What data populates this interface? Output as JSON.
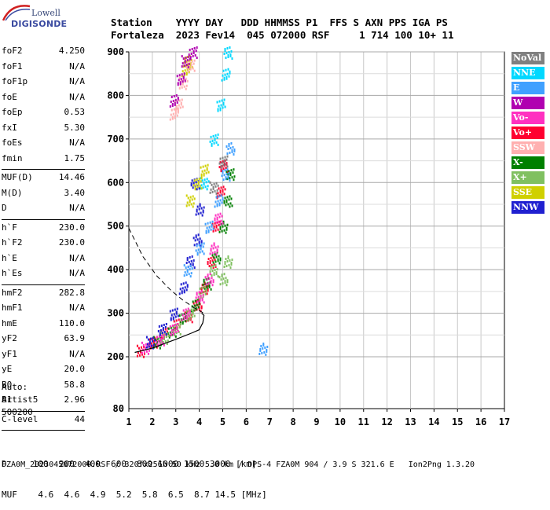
{
  "logo": {
    "line1": "Lowell",
    "line2": "DIGISONDE"
  },
  "header": {
    "row1": "Station    YYYY DAY   DDD HHMMSS P1  FFS S AXN PPS IGA PS",
    "row2": "Fortaleza  2023 Fev14  045 072000 RSF     1 714 100 10+ 11"
  },
  "params": {
    "group1": [
      {
        "k": "foF2",
        "v": "4.250"
      },
      {
        "k": "foF1",
        "v": "N/A"
      },
      {
        "k": "foF1p",
        "v": "N/A"
      },
      {
        "k": "foE",
        "v": "N/A"
      },
      {
        "k": "foEp",
        "v": "0.53"
      },
      {
        "k": "fxI",
        "v": "5.30"
      },
      {
        "k": "foEs",
        "v": "N/A"
      },
      {
        "k": "fmin",
        "v": "1.75"
      }
    ],
    "group2": [
      {
        "k": "MUF(D)",
        "v": "14.46"
      },
      {
        "k": "M(D)",
        "v": "3.40"
      },
      {
        "k": "D",
        "v": "N/A"
      }
    ],
    "group3": [
      {
        "k": "h`F",
        "v": "230.0"
      },
      {
        "k": "h`F2",
        "v": "230.0"
      },
      {
        "k": "h`E",
        "v": "N/A"
      },
      {
        "k": "h`Es",
        "v": "N/A"
      }
    ],
    "group4": [
      {
        "k": "hmF2",
        "v": "282.8"
      },
      {
        "k": "hmF1",
        "v": "N/A"
      },
      {
        "k": "hmE",
        "v": "110.0"
      },
      {
        "k": "yF2",
        "v": "63.9"
      },
      {
        "k": "yF1",
        "v": "N/A"
      },
      {
        "k": "yE",
        "v": "20.0"
      },
      {
        "k": "B0",
        "v": "58.8"
      },
      {
        "k": "B1",
        "v": "2.96"
      }
    ],
    "group5": [
      {
        "k": "C-level",
        "v": "44"
      }
    ]
  },
  "auto": {
    "line1": "Auto:",
    "line2": "Artist5",
    "line3": "500200"
  },
  "legend": [
    {
      "label": "NoVal",
      "color": "#808080"
    },
    {
      "label": "NNE",
      "color": "#00d8ff"
    },
    {
      "label": "E",
      "color": "#40a0ff"
    },
    {
      "label": "W",
      "color": "#b000b0"
    },
    {
      "label": "Vo-",
      "color": "#ff30c0"
    },
    {
      "label": "Vo+",
      "color": "#ff0030"
    },
    {
      "label": "SSW",
      "color": "#ffb0b0"
    },
    {
      "label": "X-",
      "color": "#008000"
    },
    {
      "label": "X+",
      "color": "#80c060"
    },
    {
      "label": "SSE",
      "color": "#d0d000"
    },
    {
      "label": "NNW",
      "color": "#2020d0"
    }
  ],
  "bottom": {
    "d_row": "D     100  200  400  600  800 1000 1500 3000 [km]",
    "muf_row": "MUF    4.6  4.6  4.9  5.2  5.8  6.5  8.7 14.5 [MHz]"
  },
  "footer": "FZA0M_2023045072000.RSF / 320fx256h 50 kHz 5.0 km / DPS-4 FZA0M 904 / 3.9 S 321.6 E   Ion2Png 1.3.20",
  "chart_data": {
    "type": "scatter",
    "xlim": [
      1,
      17
    ],
    "ylim": [
      80,
      900
    ],
    "x_ticks": [
      1,
      2,
      3,
      4,
      5,
      6,
      7,
      8,
      9,
      10,
      11,
      12,
      13,
      14,
      15,
      16,
      17
    ],
    "y_ticks": [
      200,
      300,
      400,
      500,
      600,
      700,
      800,
      900
    ],
    "y_tick_labels": [
      "200",
      "300",
      "400",
      "500",
      "600",
      "700",
      "800",
      "900"
    ],
    "y_bottom_label": "80",
    "grid": true,
    "legend_position": "right",
    "echo_traces": [
      {
        "direction": "Vo+",
        "points": [
          [
            1.5,
            215
          ],
          [
            2.0,
            235
          ],
          [
            2.5,
            255
          ],
          [
            3.0,
            275
          ],
          [
            3.5,
            295
          ],
          [
            3.9,
            320
          ],
          [
            4.2,
            360
          ],
          [
            4.5,
            420
          ],
          [
            4.7,
            500
          ],
          [
            4.9,
            580
          ],
          [
            5.0,
            640
          ]
        ]
      },
      {
        "direction": "X-",
        "points": [
          [
            2.2,
            235
          ],
          [
            2.8,
            260
          ],
          [
            3.3,
            290
          ],
          [
            3.8,
            320
          ],
          [
            4.3,
            370
          ],
          [
            4.7,
            430
          ],
          [
            5.0,
            500
          ],
          [
            5.2,
            560
          ],
          [
            5.3,
            620
          ]
        ]
      },
      {
        "direction": "X+",
        "points": [
          [
            2.5,
            245
          ],
          [
            3.0,
            265
          ],
          [
            3.6,
            300
          ],
          [
            4.1,
            350
          ],
          [
            4.6,
            400
          ],
          [
            5.0,
            380
          ],
          [
            5.2,
            420
          ]
        ]
      },
      {
        "direction": "Vo-",
        "points": [
          [
            1.7,
            222
          ],
          [
            2.3,
            240
          ],
          [
            2.9,
            265
          ],
          [
            3.4,
            300
          ],
          [
            4.0,
            340
          ],
          [
            4.4,
            380
          ],
          [
            4.6,
            450
          ],
          [
            4.8,
            520
          ]
        ]
      },
      {
        "direction": "NNW",
        "points": [
          [
            1.9,
            235
          ],
          [
            2.4,
            265
          ],
          [
            2.9,
            300
          ],
          [
            3.3,
            360
          ],
          [
            3.6,
            420
          ],
          [
            3.9,
            470
          ],
          [
            4.0,
            540
          ],
          [
            3.8,
            600
          ]
        ]
      },
      {
        "direction": "E",
        "points": [
          [
            3.5,
            400
          ],
          [
            4.0,
            450
          ],
          [
            4.4,
            500
          ],
          [
            4.8,
            560
          ],
          [
            5.1,
            620
          ],
          [
            5.3,
            680
          ],
          [
            6.7,
            220
          ]
        ]
      },
      {
        "direction": "NNE",
        "points": [
          [
            4.2,
            600
          ],
          [
            4.6,
            700
          ],
          [
            4.9,
            780
          ],
          [
            5.1,
            850
          ],
          [
            5.2,
            900
          ]
        ]
      },
      {
        "direction": "SSE",
        "points": [
          [
            3.6,
            560
          ],
          [
            3.9,
            600
          ],
          [
            4.2,
            630
          ],
          [
            3.4,
            860
          ],
          [
            3.5,
            880
          ]
        ]
      },
      {
        "direction": "SSW",
        "points": [
          [
            3.3,
            830
          ],
          [
            3.6,
            870
          ],
          [
            3.1,
            780
          ],
          [
            2.9,
            760
          ]
        ]
      },
      {
        "direction": "W",
        "points": [
          [
            3.4,
            880
          ],
          [
            3.7,
            900
          ],
          [
            3.2,
            840
          ],
          [
            2.9,
            790
          ]
        ]
      },
      {
        "direction": "NoVal",
        "points": [
          [
            4.6,
            590
          ],
          [
            5.0,
            650
          ]
        ]
      }
    ],
    "profile_curve": [
      [
        1.25,
        210
      ],
      [
        2.0,
        220
      ],
      [
        3.0,
        240
      ],
      [
        3.7,
        255
      ],
      [
        4.0,
        262
      ],
      [
        4.15,
        278
      ],
      [
        4.2,
        295
      ],
      [
        4.1,
        300
      ]
    ],
    "dashed_curve": [
      [
        1.0,
        495
      ],
      [
        1.6,
        430
      ],
      [
        2.2,
        385
      ],
      [
        2.8,
        352
      ],
      [
        3.3,
        330
      ],
      [
        3.8,
        312
      ],
      [
        4.2,
        300
      ]
    ]
  }
}
